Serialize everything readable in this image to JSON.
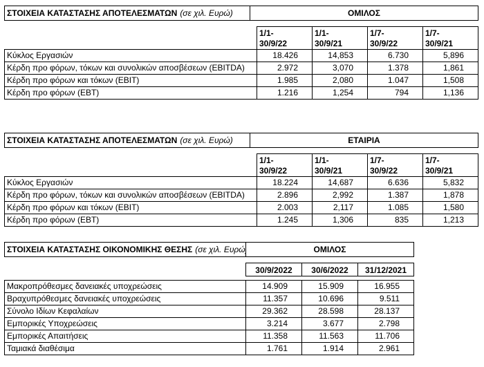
{
  "page": {
    "background": "#ffffff",
    "text_color": "#000000",
    "border_color": "#000000"
  },
  "tables": [
    {
      "title": "ΣΤΟΙΧΕΙΑ ΚΑΤΑΣΤΑΣΗΣ ΑΠΟΤΕΛΕΣΜΑΤΩΝ",
      "title_suffix": "(σε χιλ. Ευρώ)",
      "scope": "ΟΜΙΛΟΣ",
      "columns": [
        "1/1-\n30/9/22",
        "1/1-\n30/9/21",
        "1/7-\n30/9/22",
        "1/7-\n30/9/21"
      ],
      "rows": [
        {
          "label": "Κύκλος Εργασιών",
          "values": [
            "18.426",
            "14,853",
            "6.730",
            "5,896"
          ]
        },
        {
          "label": "Κέρδη προ φόρων, τόκων και συνολικών αποσβέσεων (EBITDA)",
          "values": [
            "2.972",
            "3,070",
            "1.378",
            "1,861"
          ]
        },
        {
          "label": "Κέρδη προ φόρων και τόκων (EBIT)",
          "values": [
            "1.985",
            "2,080",
            "1.047",
            "1,508"
          ]
        },
        {
          "label": "Κέρδη προ φόρων (EBT)",
          "values": [
            "1.216",
            "1,254",
            "794",
            "1,136"
          ]
        }
      ]
    },
    {
      "title": "ΣΤΟΙΧΕΙΑ ΚΑΤΑΣΤΑΣΗΣ ΑΠΟΤΕΛΕΣΜΑΤΩΝ",
      "title_suffix": "(σε χιλ. Ευρώ)",
      "scope": "ΕΤΑΙΡΙΑ",
      "columns": [
        "1/1-\n30/9/22",
        "1/1-\n30/9/21",
        "1/7-\n30/9/22",
        "1/7-\n30/9/21"
      ],
      "rows": [
        {
          "label": "Κύκλος Εργασιών",
          "values": [
            "18.224",
            "14,687",
            "6.636",
            "5,832"
          ]
        },
        {
          "label": "Κέρδη προ φόρων, τόκων και συνολικών αποσβέσεων (EBITDA)",
          "values": [
            "2.896",
            "2,992",
            "1.387",
            "1,878"
          ]
        },
        {
          "label": "Κέρδη προ φόρων και τόκων (EBIT)",
          "values": [
            "2.003",
            "2,117",
            "1.085",
            "1,580"
          ]
        },
        {
          "label": "Κέρδη προ φόρων (EBT)",
          "values": [
            "1.245",
            "1,306",
            "835",
            "1,213"
          ]
        }
      ]
    },
    {
      "title": "ΣΤΟΙΧΕΙΑ ΚΑΤΑΣΤΑΣΗΣ ΟΙΚΟΝΟΜΙΚΗΣ ΘΕΣΗΣ",
      "title_suffix": "(σε χιλ. Ευρώ)",
      "scope": "ΟΜΙΛΟΣ",
      "columns": [
        "30/9/2022",
        "30/6/2022",
        "31/12/2021"
      ],
      "rows": [
        {
          "label": "Μακροπρόθεσμες δανειακές υποχρεώσεις",
          "values": [
            "14.909",
            "15.909",
            "16.955"
          ]
        },
        {
          "label": "Βραχυπρόθεσμες δανειακές υποχρεώσεις",
          "values": [
            "11.357",
            "10.696",
            "9.511"
          ]
        },
        {
          "label": "Σύνολο Ιδίων Κεφαλαίων",
          "values": [
            "29.362",
            "28.598",
            "28.137"
          ]
        },
        {
          "label": "Εμπορικές Υποχρεώσεις",
          "values": [
            "3.214",
            "3.677",
            "2.798"
          ]
        },
        {
          "label": "Εμπορικές Απαιτήσεις",
          "values": [
            "11.358",
            "11.563",
            "11.706"
          ]
        },
        {
          "label": "Ταμιακά διαθέσιμα",
          "values": [
            "1.761",
            "1.914",
            "2.961"
          ]
        }
      ]
    }
  ]
}
